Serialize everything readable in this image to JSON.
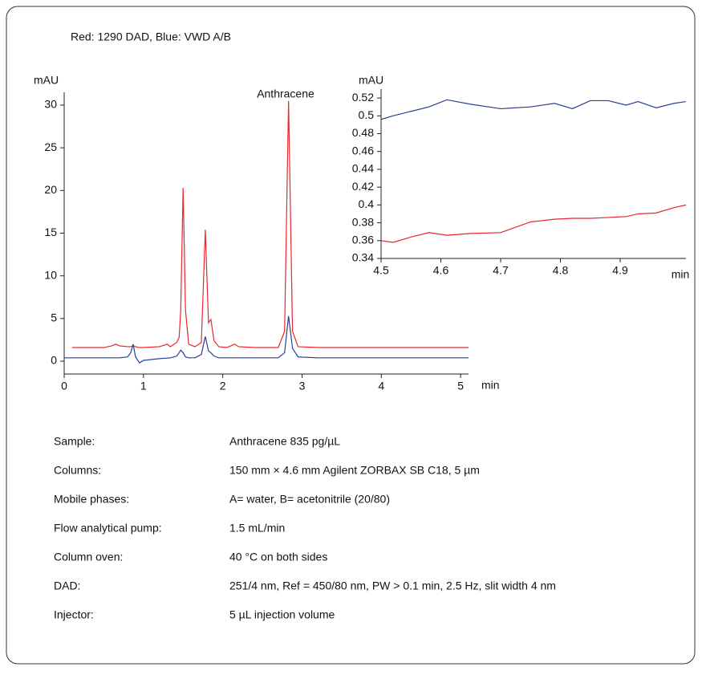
{
  "caption": "Red: 1290 DAD, Blue: VWD A/B",
  "chart_data": [
    {
      "type": "line",
      "annotation": "Anthracene",
      "ylabel": "mAU",
      "xlabel": "min",
      "x": [
        0,
        0.1,
        0.3,
        0.5,
        0.6,
        0.65,
        0.7,
        0.8,
        0.84,
        0.87,
        0.9,
        0.95,
        1.0,
        1.2,
        1.27,
        1.3,
        1.34,
        1.42,
        1.45,
        1.47,
        1.5,
        1.53,
        1.57,
        1.65,
        1.73,
        1.78,
        1.82,
        1.85,
        1.89,
        1.95,
        2.05,
        2.15,
        2.2,
        2.4,
        2.7,
        2.78,
        2.83,
        2.88,
        2.95,
        3.2,
        3.6,
        4.0,
        4.5,
        5.1
      ],
      "series": [
        {
          "color": "#e8262b",
          "values": [
            null,
            1.6,
            1.6,
            1.6,
            1.8,
            2.0,
            1.8,
            1.7,
            1.7,
            1.8,
            1.7,
            1.6,
            1.6,
            1.7,
            1.9,
            2.0,
            1.7,
            2.2,
            2.8,
            6,
            20.3,
            6,
            2.0,
            1.7,
            2.2,
            15.4,
            4.5,
            4.9,
            2.4,
            1.7,
            1.6,
            2.0,
            1.7,
            1.6,
            1.6,
            3.5,
            30.5,
            3.5,
            1.7,
            1.6,
            1.6,
            1.6,
            1.6,
            1.6
          ]
        },
        {
          "color": "#2b3f95",
          "values": [
            0.4,
            0.4,
            0.4,
            0.4,
            0.4,
            0.4,
            0.4,
            0.5,
            1.0,
            2.0,
            0.5,
            -0.2,
            0.1,
            0.3,
            0.35,
            0.35,
            0.4,
            0.6,
            1.0,
            1.3,
            1.0,
            0.5,
            0.4,
            0.4,
            0.8,
            2.9,
            1.2,
            1.0,
            0.6,
            0.4,
            0.4,
            0.4,
            0.4,
            0.4,
            0.4,
            1.0,
            5.3,
            1.5,
            0.5,
            0.4,
            0.4,
            0.4,
            0.4,
            0.4
          ]
        }
      ],
      "xlim": [
        0,
        5.1
      ],
      "ylim": [
        -1.5,
        31.5
      ],
      "xticks": [
        0,
        1,
        2,
        3,
        4,
        5
      ],
      "yticks": [
        0,
        5,
        10,
        15,
        20,
        25,
        30
      ]
    },
    {
      "type": "line",
      "ylabel": "mAU",
      "xlabel": "min",
      "x": [
        4.5,
        4.52,
        4.55,
        4.58,
        4.61,
        4.65,
        4.7,
        4.75,
        4.79,
        4.82,
        4.85,
        4.88,
        4.91,
        4.93,
        4.96,
        4.99,
        5.01
      ],
      "series": [
        {
          "color": "#2b3f95",
          "values": [
            0.496,
            0.5,
            0.505,
            0.51,
            0.518,
            0.513,
            0.508,
            0.51,
            0.514,
            0.508,
            0.517,
            0.517,
            0.512,
            0.516,
            0.509,
            0.514,
            0.516
          ]
        },
        {
          "color": "#e8262b",
          "values": [
            0.36,
            0.358,
            0.364,
            0.369,
            0.366,
            0.368,
            0.369,
            0.381,
            0.384,
            0.385,
            0.385,
            0.386,
            0.387,
            0.39,
            0.391,
            0.397,
            0.4
          ]
        }
      ],
      "xlim": [
        4.5,
        5.01
      ],
      "ylim": [
        0.34,
        0.53
      ],
      "xticks": [
        4.5,
        4.6,
        4.7,
        4.8,
        4.9
      ],
      "yticks": [
        0.34,
        0.36,
        0.38,
        0.4,
        0.42,
        0.44,
        0.46,
        0.48,
        0.5,
        0.52
      ]
    }
  ],
  "table": {
    "rows": [
      [
        "Sample:",
        "Anthracene 835 pg/µL"
      ],
      [
        "Columns:",
        "150 mm × 4.6 mm Agilent ZORBAX SB C18, 5 µm"
      ],
      [
        "Mobile phases:",
        "A= water, B= acetonitrile (20/80)"
      ],
      [
        "Flow analytical pump:",
        "1.5 mL/min"
      ],
      [
        "Column oven:",
        "40 °C on both sides"
      ],
      [
        "DAD:",
        "251/4 nm, Ref = 450/80 nm, PW > 0.1 min, 2.5 Hz, slit width 4 nm"
      ],
      [
        "Injector:",
        "5 µL injection volume"
      ]
    ]
  }
}
